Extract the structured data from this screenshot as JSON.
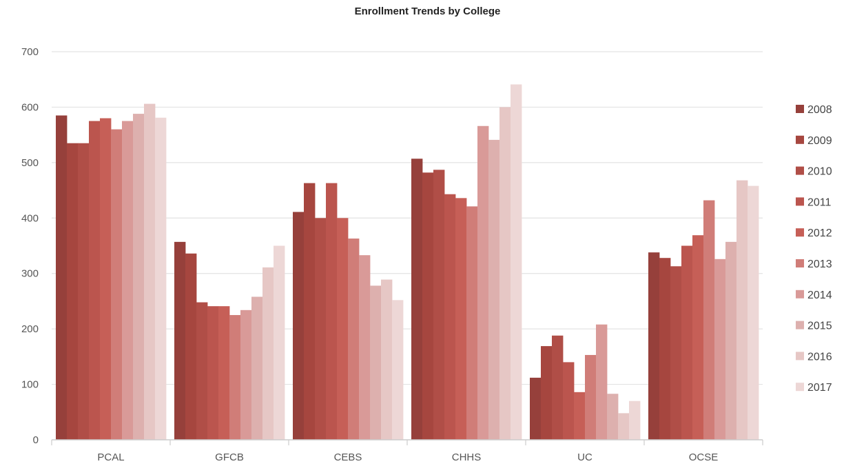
{
  "chart_data": {
    "type": "bar",
    "title": "Enrollment Trends by College",
    "xlabel": "",
    "ylabel": "",
    "ylim": [
      0,
      700
    ],
    "yticks": [
      0,
      100,
      200,
      300,
      400,
      500,
      600,
      700
    ],
    "grid": true,
    "legend_position": "right",
    "categories": [
      "PCAL",
      "GFCB",
      "CEBS",
      "CHHS",
      "UC",
      "OCSE"
    ],
    "series": [
      {
        "name": "2008",
        "color": "#96403b",
        "values": [
          585,
          357,
          411,
          507,
          112,
          338
        ]
      },
      {
        "name": "2009",
        "color": "#a6463f",
        "values": [
          535,
          336,
          463,
          482,
          169,
          328
        ]
      },
      {
        "name": "2010",
        "color": "#b04e47",
        "values": [
          535,
          248,
          400,
          487,
          188,
          313
        ]
      },
      {
        "name": "2011",
        "color": "#bb554e",
        "values": [
          575,
          241,
          463,
          443,
          140,
          350
        ]
      },
      {
        "name": "2012",
        "color": "#c65f57",
        "values": [
          580,
          241,
          400,
          436,
          86,
          369
        ]
      },
      {
        "name": "2013",
        "color": "#d07d78",
        "values": [
          560,
          225,
          363,
          421,
          153,
          432
        ]
      },
      {
        "name": "2014",
        "color": "#d99a98",
        "values": [
          575,
          234,
          333,
          566,
          208,
          326
        ]
      },
      {
        "name": "2015",
        "color": "#ddb0ae",
        "values": [
          588,
          258,
          278,
          541,
          83,
          357
        ]
      },
      {
        "name": "2016",
        "color": "#e6c7c5",
        "values": [
          606,
          311,
          289,
          600,
          48,
          468
        ]
      },
      {
        "name": "2017",
        "color": "#edd7d6",
        "values": [
          581,
          350,
          252,
          641,
          70,
          458
        ]
      }
    ]
  }
}
